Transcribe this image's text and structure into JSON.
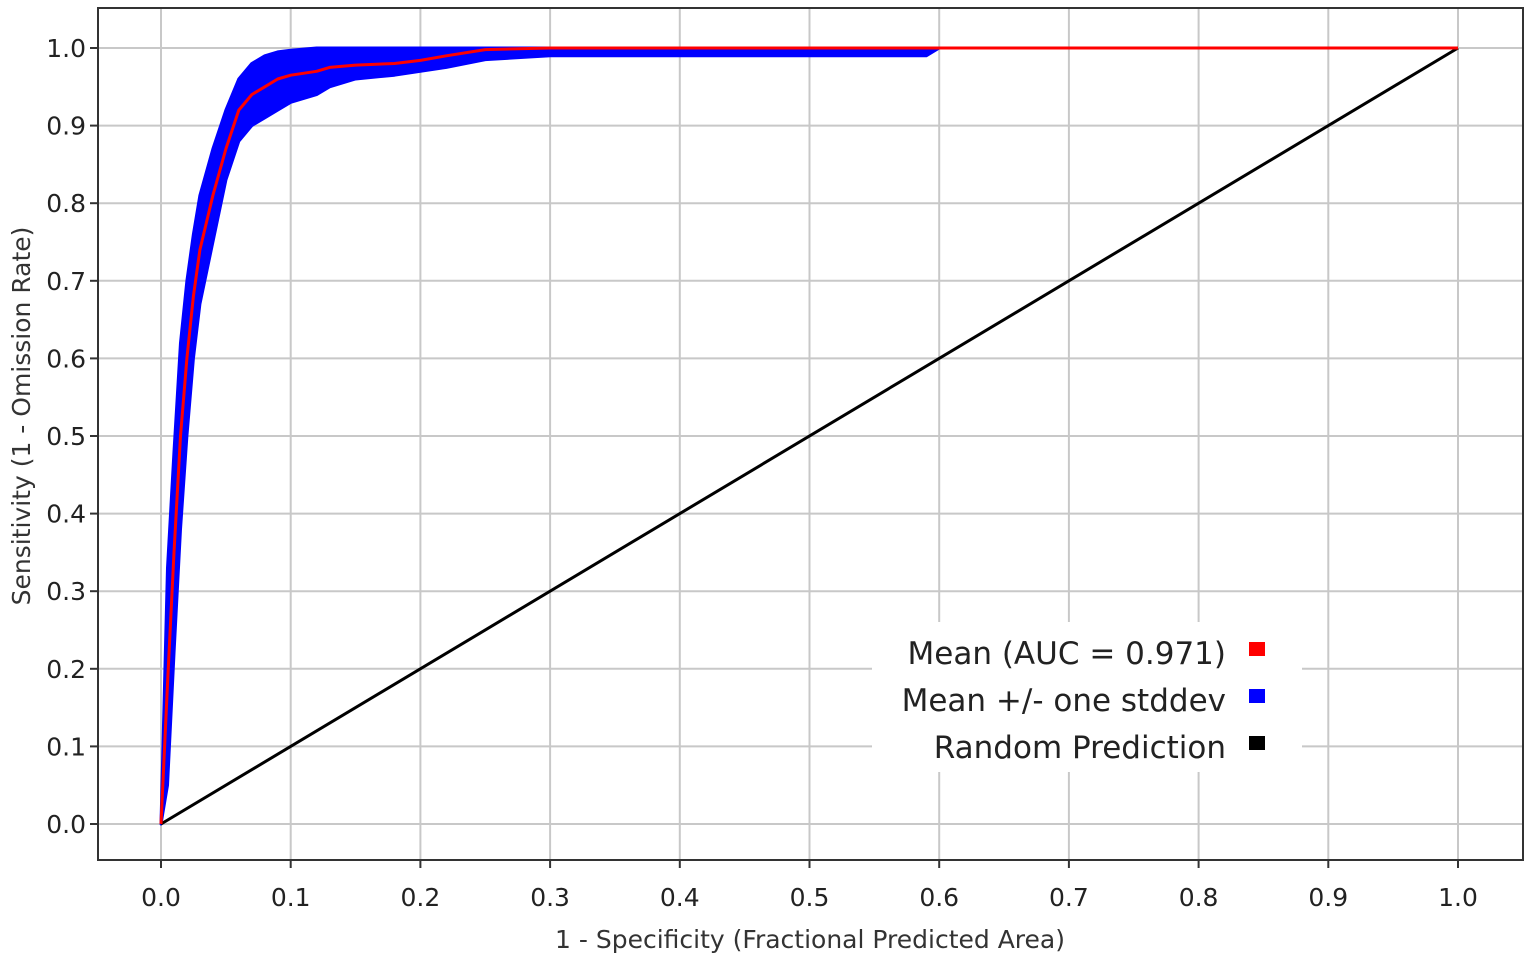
{
  "chart_data": {
    "type": "line",
    "xlabel": "1 - Specificity (Fractional Predicted Area)",
    "ylabel": "Sensitivity (1 - Omission Rate)",
    "xlim": [
      0.0,
      1.0
    ],
    "ylim": [
      0.0,
      1.0
    ],
    "x_ticks": [
      "0.0",
      "0.1",
      "0.2",
      "0.3",
      "0.4",
      "0.5",
      "0.6",
      "0.7",
      "0.8",
      "0.9",
      "1.0"
    ],
    "y_ticks": [
      "0.0",
      "0.1",
      "0.2",
      "0.3",
      "0.4",
      "0.5",
      "0.6",
      "0.7",
      "0.8",
      "0.9",
      "1.0"
    ],
    "grid": true,
    "legend_position": "bottom-right",
    "series": [
      {
        "name": "Mean (AUC = 0.971)",
        "color": "#ff0000",
        "x": [
          0.0,
          0.005,
          0.01,
          0.015,
          0.02,
          0.025,
          0.03,
          0.04,
          0.05,
          0.06,
          0.07,
          0.08,
          0.09,
          0.1,
          0.12,
          0.13,
          0.15,
          0.18,
          0.2,
          0.22,
          0.25,
          0.3,
          0.4,
          0.5,
          0.6,
          0.8,
          1.0
        ],
        "y": [
          0.0,
          0.18,
          0.35,
          0.5,
          0.6,
          0.68,
          0.74,
          0.81,
          0.87,
          0.92,
          0.94,
          0.95,
          0.96,
          0.965,
          0.97,
          0.975,
          0.978,
          0.98,
          0.984,
          0.99,
          0.998,
          1.0,
          1.0,
          1.0,
          1.0,
          1.0,
          1.0
        ]
      },
      {
        "name": "Mean +/- one stddev",
        "color": "#0000ff",
        "x": [
          0.0,
          0.005,
          0.01,
          0.015,
          0.02,
          0.025,
          0.03,
          0.04,
          0.05,
          0.06,
          0.07,
          0.08,
          0.09,
          0.1,
          0.12,
          0.13,
          0.15,
          0.18,
          0.2,
          0.22,
          0.25,
          0.3,
          0.4,
          0.5,
          0.59,
          0.6
        ],
        "upper": [
          0.0,
          0.33,
          0.48,
          0.62,
          0.7,
          0.76,
          0.81,
          0.87,
          0.92,
          0.96,
          0.98,
          0.99,
          0.995,
          0.997,
          1.0,
          1.0,
          1.0,
          1.0,
          1.0,
          1.0,
          1.0,
          1.0,
          1.0,
          1.0,
          1.0,
          1.0
        ],
        "lower": [
          0.0,
          0.05,
          0.22,
          0.38,
          0.5,
          0.6,
          0.67,
          0.75,
          0.83,
          0.88,
          0.9,
          0.91,
          0.92,
          0.93,
          0.94,
          0.95,
          0.96,
          0.965,
          0.97,
          0.975,
          0.985,
          0.99,
          0.99,
          0.99,
          0.99,
          1.0
        ]
      },
      {
        "name": "Random Prediction",
        "color": "#000000",
        "x": [
          0.0,
          1.0
        ],
        "y": [
          0.0,
          1.0
        ]
      }
    ]
  }
}
